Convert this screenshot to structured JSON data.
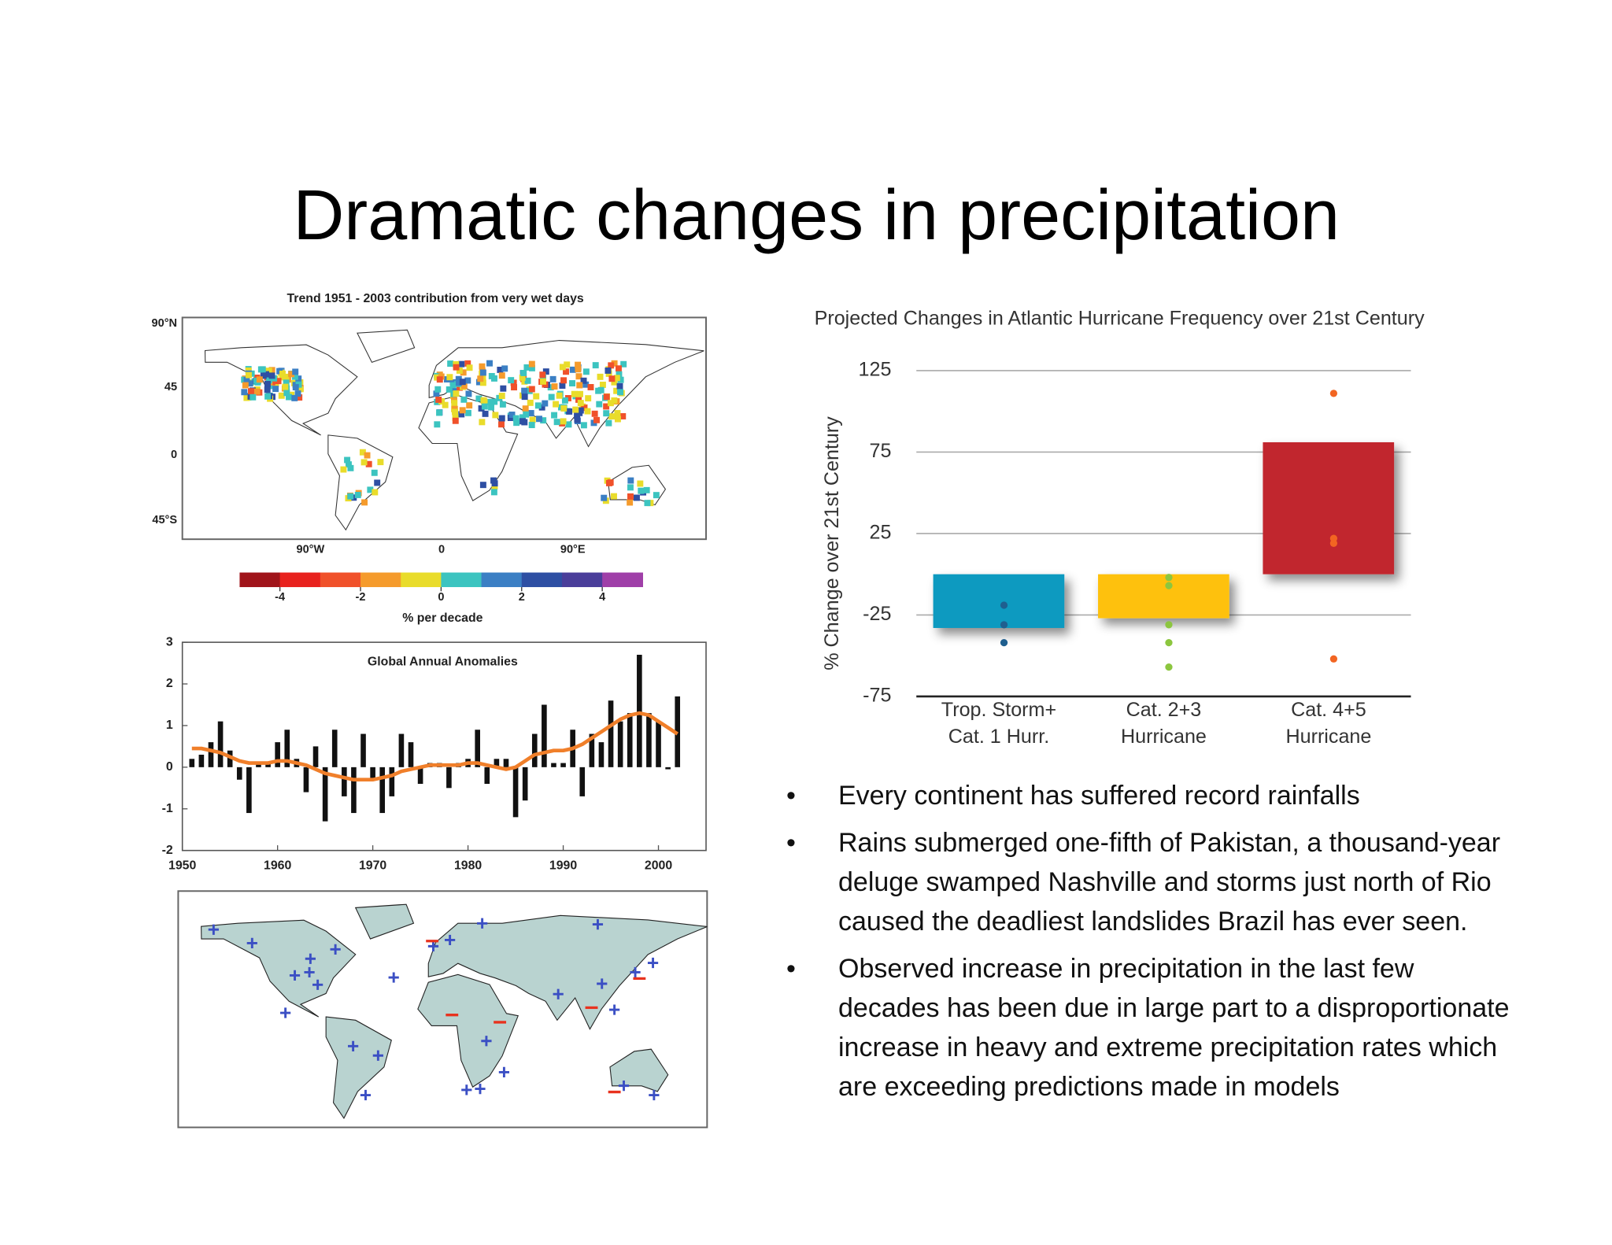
{
  "title": "Dramatic changes in precipitation",
  "maps": [
    {
      "title": "Trend 1951 - 2003 contribution from very wet days",
      "lat_labels": [
        "90°N",
        "45",
        "0",
        "45°S"
      ],
      "lon_labels": [
        "90°W",
        "0",
        "90°E"
      ]
    },
    {}
  ],
  "colorbar": {
    "ticks": [
      -4,
      -2,
      0,
      2,
      4
    ],
    "label": "% per decade",
    "colors": [
      "#a0141a",
      "#e8221e",
      "#f0512a",
      "#f59b2c",
      "#e9dc2b",
      "#3cc4c0",
      "#3b7fc4",
      "#2e4fa3",
      "#4a3e9a",
      "#9f3fa8"
    ]
  },
  "chart_data": [
    {
      "type": "bar",
      "title": "Global Annual Anomalies",
      "x": [
        1951,
        1952,
        1953,
        1954,
        1955,
        1956,
        1957,
        1958,
        1959,
        1960,
        1961,
        1962,
        1963,
        1964,
        1965,
        1966,
        1967,
        1968,
        1969,
        1970,
        1971,
        1972,
        1973,
        1974,
        1975,
        1976,
        1977,
        1978,
        1979,
        1980,
        1981,
        1982,
        1983,
        1984,
        1985,
        1986,
        1987,
        1988,
        1989,
        1990,
        1991,
        1992,
        1993,
        1994,
        1995,
        1996,
        1997,
        1998,
        1999,
        2000,
        2001,
        2002
      ],
      "series": [
        {
          "type": "bar",
          "color": "#111111",
          "values": [
            0.2,
            0.3,
            0.6,
            1.1,
            0.4,
            -0.3,
            -1.1,
            0.1,
            0.1,
            0.6,
            0.9,
            0.2,
            -0.6,
            0.5,
            -1.3,
            0.9,
            -0.7,
            -1.1,
            0.8,
            -0.3,
            -1.1,
            -0.7,
            0.8,
            0.6,
            -0.4,
            0.1,
            0.1,
            -0.5,
            0.1,
            0.2,
            0.9,
            -0.4,
            0.2,
            0.2,
            -1.2,
            -0.8,
            0.8,
            1.5,
            0.1,
            0.1,
            0.9,
            -0.7,
            0.8,
            0.6,
            1.6,
            1.1,
            1.3,
            2.7,
            1.3,
            1.1,
            -0.05,
            1.7
          ]
        },
        {
          "type": "line",
          "color": "#f07f2a",
          "values": [
            0.45,
            0.45,
            0.4,
            0.35,
            0.25,
            0.15,
            0.1,
            0.1,
            0.1,
            0.15,
            0.15,
            0.1,
            0.05,
            -0.05,
            -0.15,
            -0.2,
            -0.25,
            -0.3,
            -0.3,
            -0.3,
            -0.25,
            -0.2,
            -0.1,
            -0.05,
            0,
            0.05,
            0.05,
            0.05,
            0.05,
            0.1,
            0.1,
            0.05,
            0,
            -0.05,
            0,
            0.15,
            0.3,
            0.35,
            0.4,
            0.4,
            0.45,
            0.55,
            0.7,
            0.85,
            1.0,
            1.15,
            1.25,
            1.3,
            1.25,
            1.1,
            0.95,
            0.8
          ]
        }
      ],
      "xlim": [
        1950,
        2005
      ],
      "xticks": [
        1950,
        1960,
        1970,
        1980,
        1990,
        2000
      ],
      "ylim": [
        -2,
        3
      ],
      "yticks": [
        -2,
        -1,
        0,
        1,
        2,
        3
      ]
    },
    {
      "type": "bar",
      "title": "Projected Changes in Atlantic Hurricane Frequency over 21st Century",
      "ylabel": "% Change over 21st Century",
      "categories": [
        "Trop. Storm+\nCat. 1 Hurr.",
        "Cat. 2+3\nHurricane",
        "Cat. 4+5\nHurricane"
      ],
      "values": [
        -33,
        -27,
        81
      ],
      "colors": [
        "#0e9ac0",
        "#fec10e",
        "#c1272d"
      ],
      "points": [
        [
          -19,
          -31,
          -42
        ],
        [
          -2,
          -7,
          -31,
          -42,
          -57
        ],
        [
          111,
          22,
          19,
          -52
        ]
      ],
      "point_colors": [
        "#1f5f8f",
        "#8cc63f",
        "#f26522"
      ],
      "ylim": [
        -75,
        125
      ],
      "yticks": [
        -75,
        -25,
        25,
        75,
        125
      ],
      "grid": true
    }
  ],
  "bullets": [
    "Every continent has suffered record rainfalls",
    "Rains submerged one-fifth of Pakistan, a thousand-year deluge swamped Nashville and storms just north of Rio caused the deadliest landslides Brazil has ever seen.",
    "Observed increase in precipitation in the last few decades has been due in large part to a disproportionate increase in heavy and extreme precipitation rates which are exceeding predictions made in models"
  ]
}
